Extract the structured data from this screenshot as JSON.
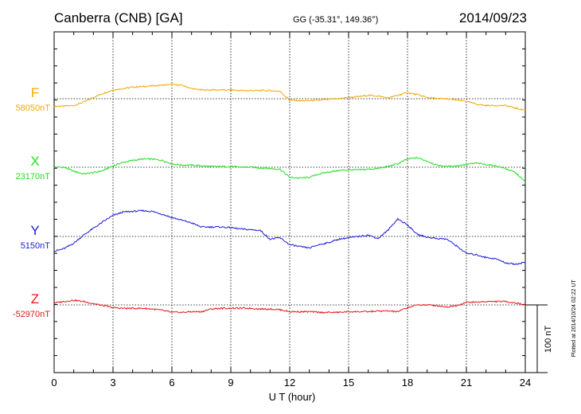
{
  "header": {
    "station": "Canberra (CNB)  [GA]",
    "coords": "GG (-35.31°, 149.36°)",
    "date": "2014/09/23"
  },
  "footer_note": "Plotted at 2014/10/24 02:22 UT",
  "chart_data": {
    "type": "line",
    "xlabel": "U T (hour)",
    "xlim": [
      0,
      24
    ],
    "xticks": [
      "0",
      "3",
      "6",
      "9",
      "12",
      "15",
      "18",
      "21",
      "24"
    ],
    "scale_bar": "100 nT",
    "series": [
      {
        "name": "F",
        "baseline": "58050nT",
        "color": "#f5a800",
        "x": [
          0,
          0.5,
          1,
          1.5,
          2,
          2.5,
          3,
          3.5,
          4,
          4.5,
          5,
          5.5,
          6,
          6.5,
          7,
          7.5,
          8,
          8.5,
          9,
          9.5,
          10,
          10.5,
          11,
          11.5,
          12,
          12.5,
          13,
          13.5,
          14,
          14.5,
          15,
          15.5,
          16,
          16.5,
          17,
          17.5,
          18,
          18.5,
          19,
          19.5,
          20,
          20.5,
          21,
          21.5,
          22,
          22.5,
          23,
          23.5,
          24
        ],
        "y": [
          -11,
          -11,
          -10,
          -5,
          2,
          8,
          13,
          15,
          17,
          18,
          19,
          20,
          21,
          20,
          15,
          13,
          13,
          13,
          13,
          12,
          12,
          12,
          12,
          11,
          -2,
          -3,
          -3,
          -2,
          -1,
          0,
          2,
          3,
          5,
          4,
          1,
          5,
          9,
          6,
          2,
          0,
          0,
          -2,
          -4,
          -8,
          -10,
          -10,
          -10,
          -14,
          -17
        ]
      },
      {
        "name": "X",
        "baseline": "23170nT",
        "color": "#22dd22",
        "x": [
          0,
          0.5,
          1,
          1.5,
          2,
          2.5,
          3,
          3.5,
          4,
          4.5,
          5,
          5.5,
          6,
          6.5,
          7,
          7.5,
          8,
          8.5,
          9,
          9.5,
          10,
          10.5,
          11,
          11.5,
          12,
          12.5,
          13,
          13.5,
          14,
          14.5,
          15,
          15.5,
          16,
          16.5,
          17,
          17.5,
          18,
          18.5,
          19,
          19.5,
          20,
          20.5,
          21,
          21.5,
          22,
          22.5,
          23,
          23.5,
          24
        ],
        "y": [
          0,
          0,
          -6,
          -10,
          -8,
          -5,
          2,
          7,
          10,
          12,
          12,
          10,
          5,
          3,
          3,
          2,
          1,
          1,
          1,
          0,
          0,
          -1,
          -2,
          -3,
          -15,
          -16,
          -15,
          -10,
          -7,
          -5,
          -4,
          -4,
          -3,
          -2,
          1,
          5,
          12,
          14,
          9,
          3,
          1,
          2,
          4,
          6,
          4,
          2,
          -2,
          -8,
          -22
        ]
      },
      {
        "name": "Y",
        "baseline": "5150nT",
        "color": "#1a1adc",
        "x": [
          0,
          0.5,
          1,
          1.5,
          2,
          2.5,
          3,
          3.5,
          4,
          4.5,
          5,
          5.5,
          6,
          6.5,
          7,
          7.5,
          8,
          8.5,
          9,
          9.5,
          10,
          10.5,
          11,
          11.5,
          12,
          12.5,
          13,
          13.5,
          14,
          14.5,
          15,
          15.5,
          16,
          16.5,
          17,
          17.5,
          18,
          18.5,
          19,
          19.5,
          20,
          20.5,
          21,
          21.5,
          22,
          22.5,
          23,
          23.5,
          24
        ],
        "y": [
          -22,
          -18,
          -10,
          2,
          12,
          22,
          31,
          36,
          37,
          38,
          37,
          33,
          28,
          24,
          20,
          14,
          14,
          14,
          13,
          11,
          10,
          9,
          -4,
          -2,
          -12,
          -15,
          -17,
          -12,
          -9,
          -4,
          -2,
          0,
          2,
          -3,
          9,
          26,
          17,
          3,
          -1,
          -3,
          -4,
          -14,
          -25,
          -27,
          -31,
          -33,
          -39,
          -41,
          -38
        ]
      },
      {
        "name": "Z",
        "baseline": "-52970nT",
        "color": "#e8161b",
        "x": [
          0,
          0.5,
          1,
          1.5,
          2,
          2.5,
          3,
          3.5,
          4,
          4.5,
          5,
          5.5,
          6,
          6.5,
          7,
          7.5,
          8,
          8.5,
          9,
          9.5,
          10,
          10.5,
          11,
          11.5,
          12,
          12.5,
          13,
          13.5,
          14,
          14.5,
          15,
          15.5,
          16,
          16.5,
          17,
          17.5,
          18,
          18.5,
          19,
          19.5,
          20,
          20.5,
          21,
          21.5,
          22,
          22.5,
          23,
          23.5,
          24
        ],
        "y": [
          3,
          5,
          7,
          5,
          2,
          -1,
          -4,
          -5,
          -5,
          -5,
          -6,
          -8,
          -11,
          -11,
          -10,
          -10,
          -6,
          -5,
          -5,
          -5,
          -5,
          -6,
          -6,
          -7,
          -10,
          -10,
          -10,
          -11,
          -11,
          -11,
          -10,
          -10,
          -10,
          -9,
          -9,
          -10,
          -4,
          0,
          0,
          -1,
          -3,
          -1,
          4,
          4,
          5,
          5,
          5,
          3,
          0
        ]
      }
    ]
  }
}
